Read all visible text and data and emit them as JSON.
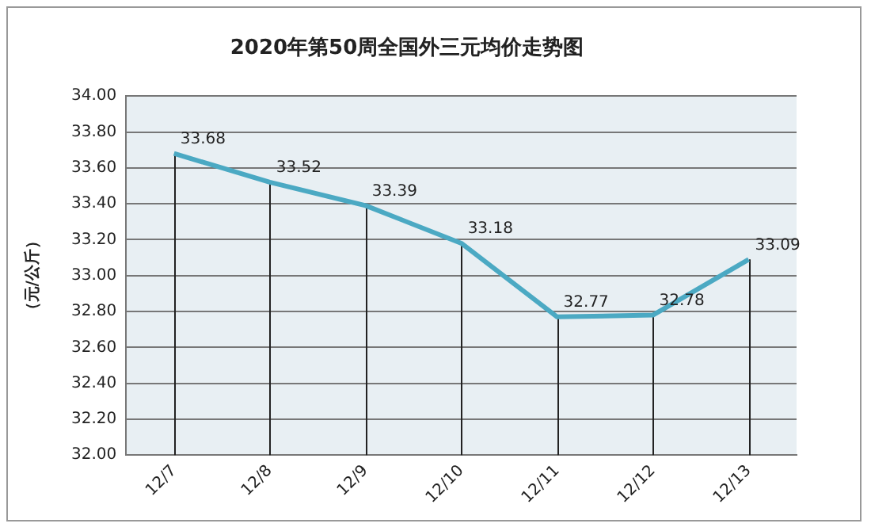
{
  "chart_data": {
    "type": "line",
    "title": "2020年第50周全国外三元均价走势图",
    "ylabel": "（元/公斤）",
    "categories": [
      "12/7",
      "12/8",
      "12/9",
      "12/10",
      "12/11",
      "12/12",
      "12/13"
    ],
    "series": [
      {
        "color": "#4ba9c3",
        "values": [
          33.68,
          33.52,
          33.39,
          33.18,
          32.77,
          32.78,
          33.09
        ]
      }
    ],
    "ylim": [
      32,
      34
    ],
    "yticks": [
      {
        "value": 32,
        "label": "32.00"
      },
      {
        "value": 32.2,
        "label": "32.20"
      },
      {
        "value": 32.4,
        "label": "32.40"
      },
      {
        "value": 32.6,
        "label": "32.60"
      },
      {
        "value": 32.8,
        "label": "32.80"
      },
      {
        "value": 33,
        "label": "33.00"
      },
      {
        "value": 33.2,
        "label": "33.20"
      },
      {
        "value": 33.4,
        "label": "33.40"
      },
      {
        "value": 33.6,
        "label": "33.60"
      },
      {
        "value": 33.8,
        "label": "33.80"
      },
      {
        "value": 34,
        "label": "34.00"
      }
    ],
    "grid": true,
    "legend": false,
    "marker": "none",
    "line_style": "solid",
    "data_labels": true
  }
}
